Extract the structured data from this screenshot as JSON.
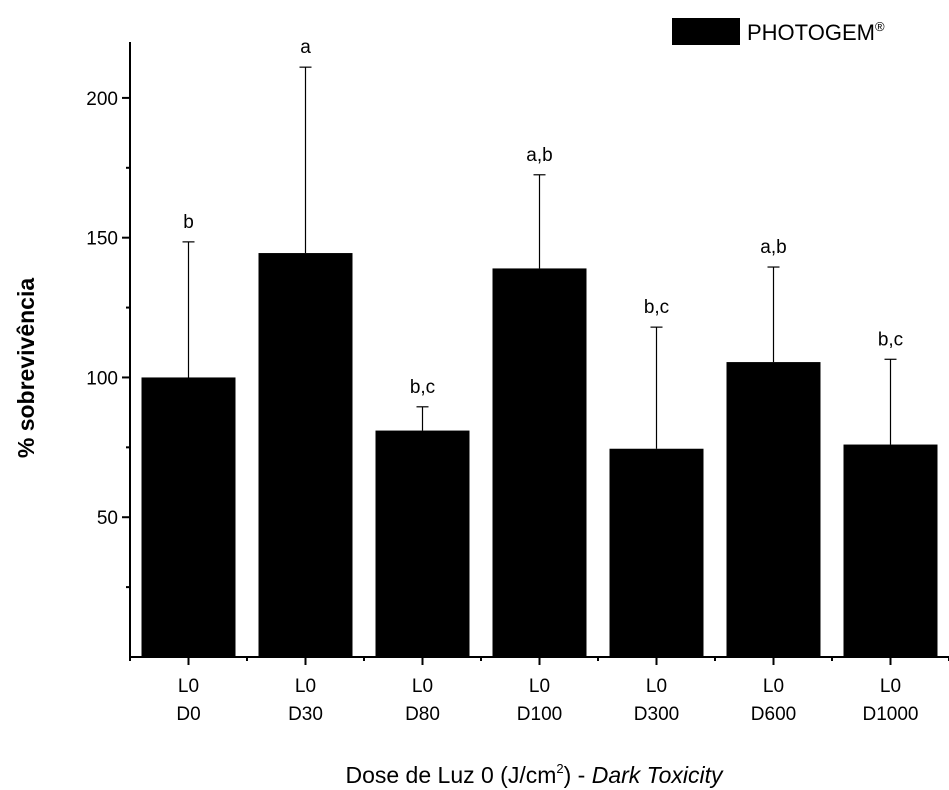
{
  "chart_data": {
    "type": "bar",
    "categories": [
      {
        "line1": "L0",
        "line2": "D0"
      },
      {
        "line1": "L0",
        "line2": "D30"
      },
      {
        "line1": "L0",
        "line2": "D80"
      },
      {
        "line1": "L0",
        "line2": "D100"
      },
      {
        "line1": "L0",
        "line2": "D300"
      },
      {
        "line1": "L0",
        "line2": "D600"
      },
      {
        "line1": "L0",
        "line2": "D1000"
      }
    ],
    "series": [
      {
        "name": "PHOTOGEM",
        "name_mark": "®",
        "color": "#000000",
        "values": [
          100,
          144.5,
          81,
          139,
          74.5,
          105.5,
          76
        ],
        "error_upper": [
          148.5,
          211,
          89.5,
          172.5,
          118,
          139.5,
          106.5
        ],
        "significance": [
          "b",
          "a",
          "b,c",
          "a,b",
          "b,c",
          "a,b",
          "b,c"
        ]
      }
    ],
    "ylabel": "% sobrevivência",
    "xlabel": {
      "main": "Dose de Luz 0 (J/cm",
      "sup": "2",
      "close": ") - ",
      "italic": "Dark Toxicity"
    },
    "ylim": [
      0,
      220
    ],
    "yticks": [
      50,
      100,
      150,
      200
    ],
    "yticks_minor": [
      25,
      75,
      125,
      175
    ],
    "legend": "top-right",
    "grid": false
  }
}
